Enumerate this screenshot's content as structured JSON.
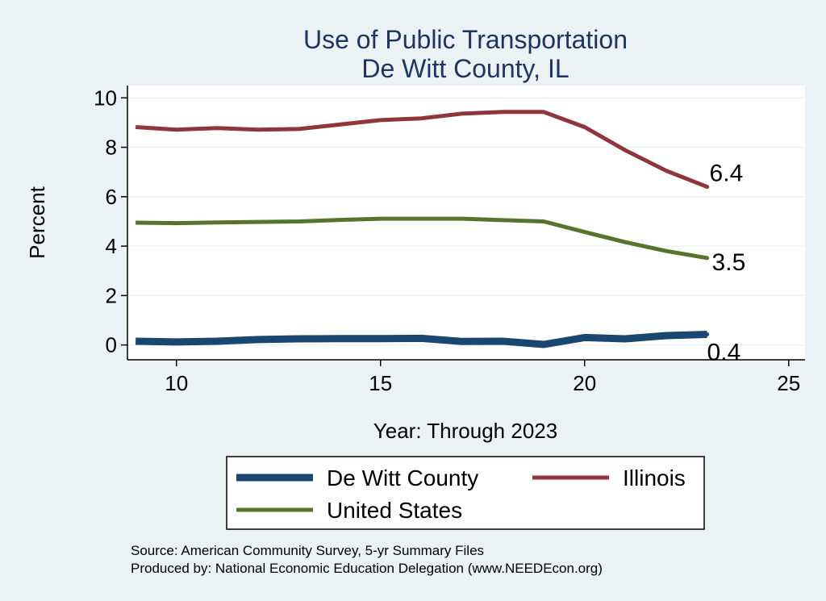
{
  "chart_data": {
    "type": "line",
    "title": "Use of Public Transportation",
    "subtitle": "De Witt County, IL",
    "xlabel": "Year: Through 2023",
    "ylabel": "Percent",
    "xlim": [
      8.8,
      25.4
    ],
    "ylim": [
      -0.6,
      10.5
    ],
    "xticks": [
      10,
      15,
      20,
      25
    ],
    "yticks": [
      0,
      2,
      4,
      6,
      8,
      10
    ],
    "grid": true,
    "legend_position": "bottom",
    "x": [
      9,
      10,
      11,
      12,
      13,
      14,
      15,
      16,
      17,
      18,
      19,
      20,
      21,
      22,
      23
    ],
    "series": [
      {
        "name": "De Witt County",
        "color": "#1a476f",
        "values": [
          0.15,
          0.12,
          0.15,
          0.22,
          0.25,
          0.26,
          0.26,
          0.27,
          0.14,
          0.15,
          0.02,
          0.3,
          0.25,
          0.38,
          0.43
        ],
        "end_label": "0.4"
      },
      {
        "name": "Illinois",
        "color": "#90353b",
        "values": [
          8.82,
          8.71,
          8.78,
          8.71,
          8.74,
          8.92,
          9.1,
          9.17,
          9.36,
          9.43,
          9.43,
          8.82,
          7.88,
          7.05,
          6.4
        ],
        "end_label": "6.4"
      },
      {
        "name": "United States",
        "color": "#55752f",
        "values": [
          4.95,
          4.93,
          4.96,
          4.98,
          5.0,
          5.06,
          5.11,
          5.11,
          5.11,
          5.05,
          5.0,
          4.57,
          4.16,
          3.8,
          3.52
        ],
        "end_label": "3.5"
      }
    ],
    "notes": [
      "Source: American Community Survey, 5-yr Summary Files",
      "Produced by: National Economic Education Delegation (www.NEEDEcon.org)"
    ]
  }
}
